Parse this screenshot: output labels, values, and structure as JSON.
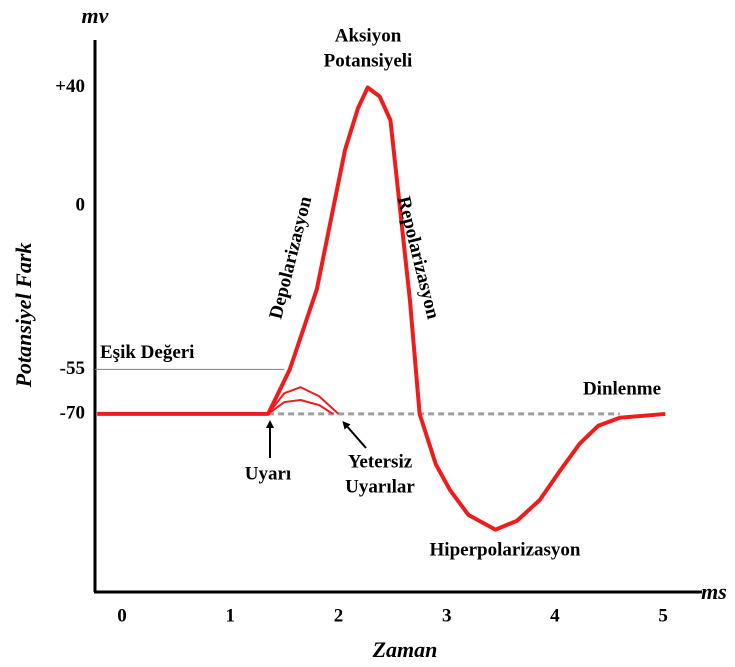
{
  "chart_data": {
    "type": "line",
    "y_label": "Potansiyel Fark",
    "x_label": "Zaman",
    "y_unit": "mv",
    "x_unit": "ms",
    "xlim": [
      -0.25,
      5.35
    ],
    "ylim": [
      -130,
      56
    ],
    "xticks": [
      0,
      1,
      2,
      3,
      4,
      5
    ],
    "yticks": [
      {
        "value": 40,
        "label": "+40"
      },
      0,
      -55,
      -70
    ],
    "grid": false,
    "threshold": {
      "value": -55,
      "label": "Eşik Değeri",
      "color": "#808080"
    },
    "series": [
      {
        "color": "#a0a0a0",
        "dashed": true,
        "width": 3,
        "x": [
          1.35,
          4.6
        ],
        "values": [
          -70,
          -70
        ]
      },
      {
        "color": "#ee1c1c",
        "width": 2,
        "x": [
          1.35,
          1.5,
          1.65,
          1.82,
          2.0
        ],
        "values": [
          -70,
          -63,
          -61,
          -64,
          -70
        ]
      },
      {
        "color": "#ee1c1c",
        "width": 2,
        "x": [
          1.35,
          1.5,
          1.65,
          1.82,
          1.95
        ],
        "values": [
          -70,
          -66,
          -65.3,
          -67,
          -70
        ]
      },
      {
        "color": "#ee1c1c",
        "width": 4,
        "x": [
          -0.23,
          1.35,
          1.55,
          1.8,
          2.06,
          2.18,
          2.27,
          2.38,
          2.48,
          2.66,
          2.75,
          2.9,
          3.03,
          3.2,
          3.45,
          3.65,
          3.86,
          4.05,
          4.23,
          4.4,
          4.6,
          5.02
        ],
        "values": [
          -70,
          -70,
          -55,
          -28,
          18.9,
          33,
          40,
          37,
          29,
          -31.6,
          -70,
          -87,
          -95.6,
          -104,
          -109,
          -106,
          -99,
          -89,
          -80,
          -74,
          -71.3,
          -70
        ]
      }
    ],
    "annotations": {
      "peak": [
        "Aksiyon",
        "Potansiyeli"
      ],
      "rise": "Depolarizasyon",
      "fall": "Repolarizasyon",
      "rest": "Dinlenme",
      "stimulus": "Uyarı",
      "subthreshold": [
        "Yetersiz",
        "Uyarılar"
      ],
      "trough": "Hiperpolarizasyon"
    }
  }
}
